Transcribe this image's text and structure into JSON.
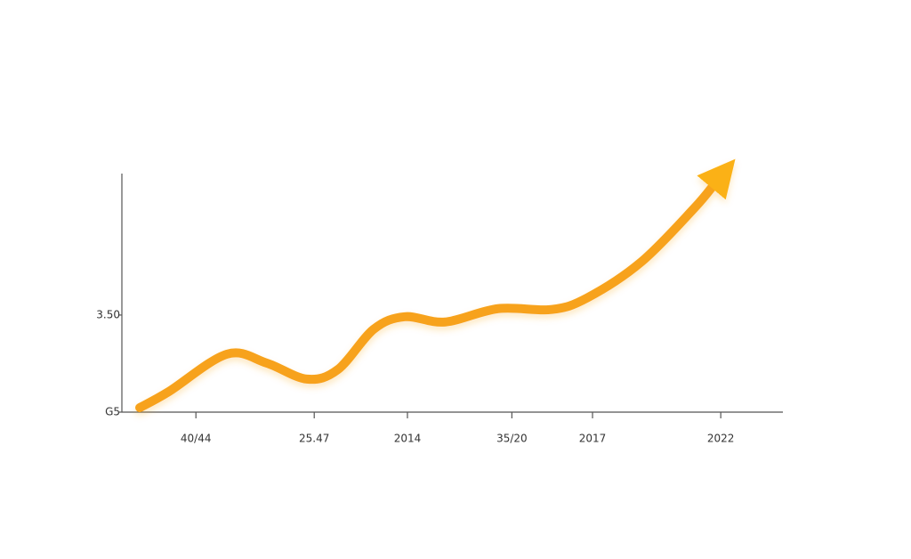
{
  "chart_data": {
    "type": "line",
    "x": [
      2.7,
      7.1,
      15.9,
      21.9,
      28.0,
      32.7,
      38.1,
      42.8,
      48.9,
      56.9,
      65.0,
      70.4,
      78.5,
      86.5,
      89.9
    ],
    "values": [
      0.16,
      0.74,
      2.09,
      1.77,
      1.19,
      1.54,
      2.99,
      3.44,
      3.25,
      3.73,
      3.7,
      4.12,
      5.4,
      7.33,
      8.3
    ],
    "color": "#f7a21b",
    "xlim": [
      0,
      100
    ],
    "xticks": [
      {
        "value": 11.2,
        "label": "40/44"
      },
      {
        "value": 29.1,
        "label": "25.47"
      },
      {
        "value": 43.2,
        "label": "2014"
      },
      {
        "value": 59.0,
        "label": "35/20"
      },
      {
        "value": 71.2,
        "label": "2017"
      },
      {
        "value": 90.6,
        "label": "2022"
      }
    ],
    "ylim": [
      0,
      8.6
    ],
    "yticks": [
      {
        "value": 0,
        "label": "G5"
      },
      {
        "value": 3.5,
        "label": "3.50"
      }
    ]
  }
}
